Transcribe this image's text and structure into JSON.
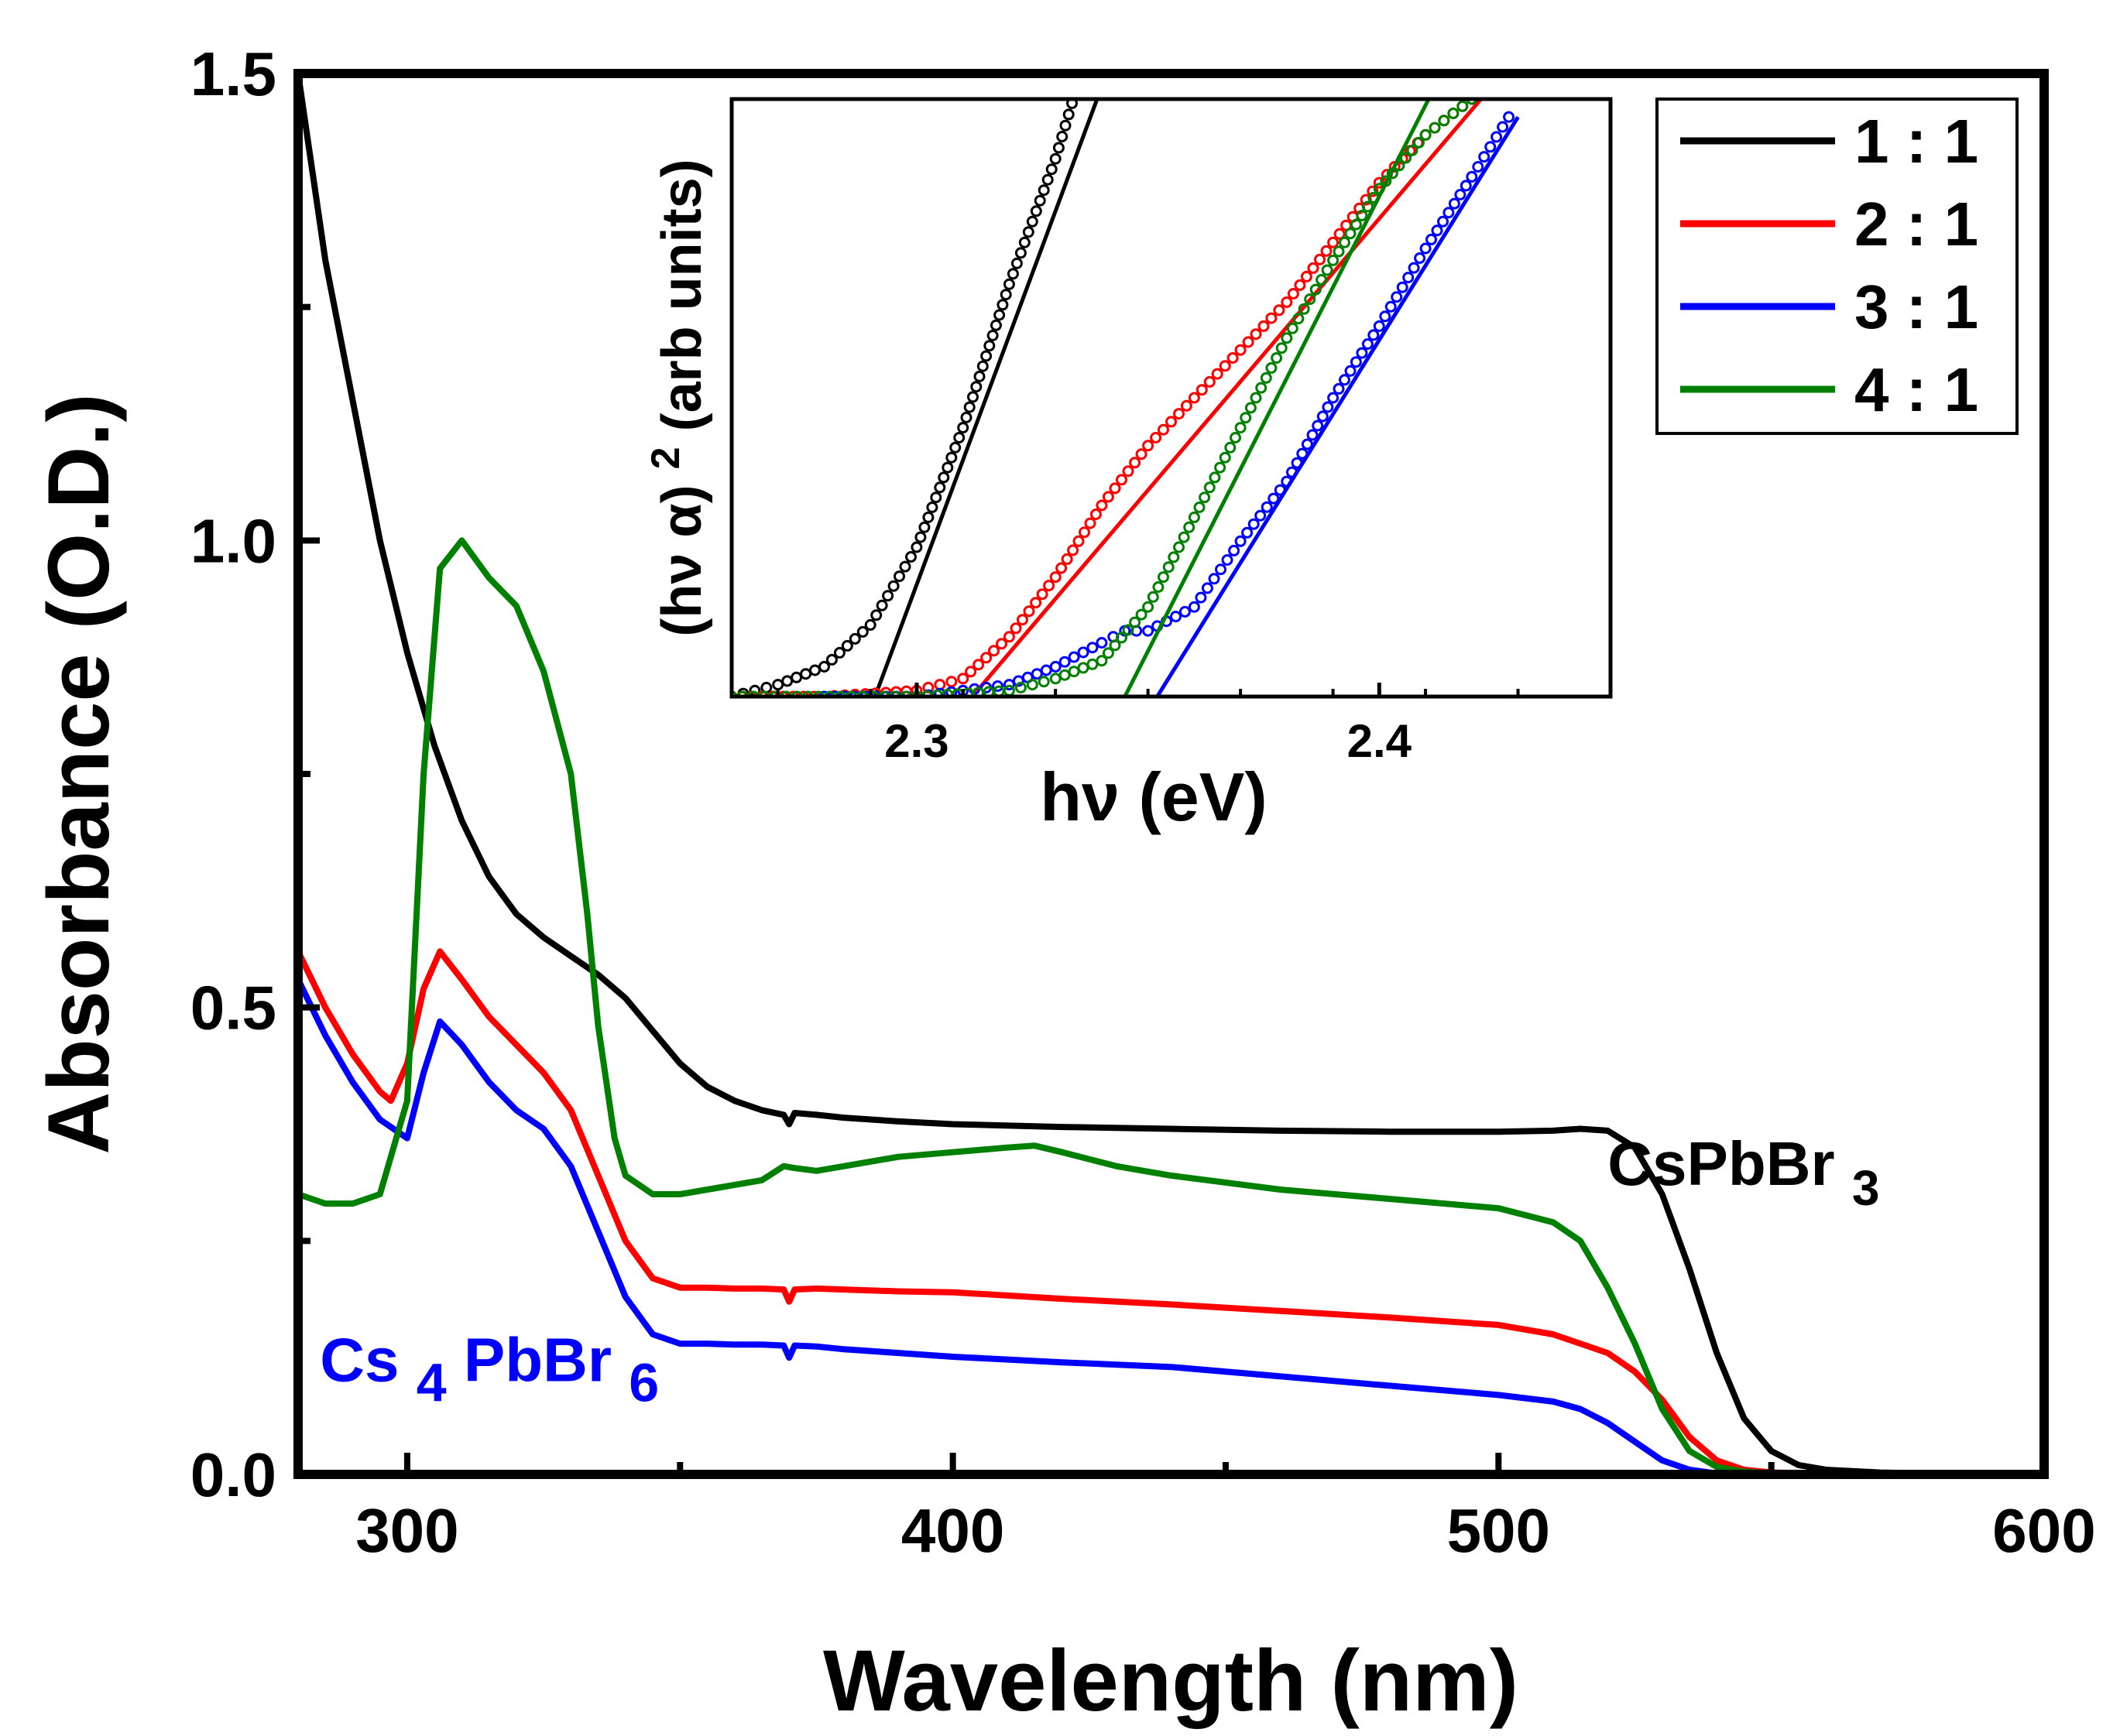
{
  "chart_data": [
    {
      "type": "line",
      "title": "",
      "xlabel": "Wavelength (nm)",
      "ylabel": "Absorbance (O.D.)",
      "xlim": [
        280,
        600
      ],
      "ylim": [
        0,
        1.5
      ],
      "x_ticks": [
        300,
        400,
        500,
        600
      ],
      "x_tick_labels": [
        "300",
        "400",
        "500",
        "600"
      ],
      "y_ticks": [
        0,
        0.5,
        1.0,
        1.5
      ],
      "y_tick_labels": [
        "0.0",
        "0.5",
        "1.0",
        "1.5"
      ],
      "legend_position": "top-right",
      "annotations": [
        {
          "name": "cspbbr3",
          "main": "CsPbBr",
          "sub": "3",
          "color": "#000000",
          "x": 520,
          "y": 0.31
        },
        {
          "name": "cs4pbbr6",
          "parts": [
            {
              "text": "Cs",
              "sub": false
            },
            {
              "text": "4",
              "sub": true
            },
            {
              "text": "PbBr",
              "sub": false
            },
            {
              "text": "6",
              "sub": true
            }
          ],
          "color": "#0000ff",
          "x": 284,
          "y": 0.1
        }
      ],
      "series": [
        {
          "name": "1 : 1",
          "color": "#000000",
          "x": [
            280,
            285,
            290,
            295,
            300,
            305,
            310,
            315,
            320,
            325,
            330,
            335,
            340,
            345,
            350,
            355,
            360,
            365,
            369,
            370,
            371,
            375,
            380,
            390,
            400,
            420,
            440,
            460,
            480,
            500,
            510,
            515,
            520,
            525,
            530,
            535,
            540,
            545,
            550,
            555,
            560,
            570,
            580,
            600
          ],
          "y": [
            1.5,
            1.3,
            1.15,
            1.0,
            0.88,
            0.78,
            0.7,
            0.64,
            0.6,
            0.575,
            0.555,
            0.535,
            0.51,
            0.475,
            0.44,
            0.415,
            0.4,
            0.39,
            0.385,
            0.375,
            0.387,
            0.385,
            0.382,
            0.378,
            0.375,
            0.372,
            0.37,
            0.368,
            0.367,
            0.367,
            0.368,
            0.37,
            0.368,
            0.35,
            0.3,
            0.22,
            0.13,
            0.06,
            0.025,
            0.01,
            0.005,
            0.002,
            0.001,
            0.0
          ]
        },
        {
          "name": "2 : 1",
          "color": "#ff0000",
          "x": [
            280,
            285,
            290,
            295,
            297,
            300,
            303,
            306,
            310,
            315,
            320,
            325,
            330,
            335,
            340,
            345,
            350,
            355,
            360,
            365,
            369,
            370,
            371,
            375,
            380,
            390,
            400,
            420,
            440,
            460,
            480,
            500,
            510,
            520,
            525,
            530,
            535,
            540,
            545,
            550,
            560,
            580,
            600
          ],
          "y": [
            0.56,
            0.5,
            0.45,
            0.41,
            0.4,
            0.44,
            0.52,
            0.56,
            0.53,
            0.49,
            0.46,
            0.43,
            0.39,
            0.32,
            0.25,
            0.21,
            0.2,
            0.2,
            0.199,
            0.199,
            0.198,
            0.185,
            0.198,
            0.199,
            0.198,
            0.196,
            0.195,
            0.188,
            0.182,
            0.175,
            0.168,
            0.16,
            0.15,
            0.13,
            0.11,
            0.08,
            0.04,
            0.015,
            0.005,
            0.002,
            0.001,
            0.0,
            0.0
          ]
        },
        {
          "name": "3 : 1",
          "color": "#0000ff",
          "x": [
            280,
            285,
            290,
            295,
            300,
            303,
            306,
            310,
            315,
            320,
            325,
            330,
            335,
            340,
            345,
            350,
            355,
            360,
            365,
            369,
            370,
            371,
            375,
            380,
            390,
            400,
            420,
            440,
            460,
            480,
            500,
            510,
            515,
            520,
            525,
            530,
            535,
            540,
            550,
            600
          ],
          "y": [
            0.53,
            0.47,
            0.42,
            0.38,
            0.36,
            0.43,
            0.485,
            0.46,
            0.42,
            0.39,
            0.37,
            0.33,
            0.26,
            0.19,
            0.15,
            0.14,
            0.14,
            0.139,
            0.139,
            0.138,
            0.125,
            0.138,
            0.137,
            0.134,
            0.13,
            0.126,
            0.12,
            0.115,
            0.105,
            0.095,
            0.085,
            0.078,
            0.07,
            0.055,
            0.035,
            0.015,
            0.005,
            0.001,
            0.0,
            0.0
          ]
        },
        {
          "name": "4 : 1",
          "color": "#008000",
          "x": [
            280,
            285,
            290,
            295,
            300,
            303,
            306,
            310,
            315,
            320,
            325,
            330,
            333,
            335,
            338,
            340,
            345,
            350,
            355,
            360,
            365,
            369,
            371,
            375,
            380,
            390,
            400,
            410,
            415,
            420,
            430,
            440,
            460,
            480,
            500,
            510,
            515,
            520,
            525,
            530,
            535,
            540,
            545,
            550,
            560,
            600
          ],
          "y": [
            0.3,
            0.29,
            0.29,
            0.3,
            0.4,
            0.75,
            0.97,
            1.0,
            0.96,
            0.93,
            0.86,
            0.75,
            0.6,
            0.48,
            0.36,
            0.32,
            0.3,
            0.3,
            0.305,
            0.31,
            0.315,
            0.33,
            0.328,
            0.325,
            0.33,
            0.34,
            0.345,
            0.35,
            0.352,
            0.345,
            0.33,
            0.32,
            0.305,
            0.295,
            0.285,
            0.27,
            0.25,
            0.2,
            0.14,
            0.07,
            0.025,
            0.008,
            0.003,
            0.001,
            0.0,
            0.0
          ]
        }
      ]
    },
    {
      "type": "scatter",
      "title": "",
      "xlabel": "hν (eV)",
      "ylabel_parts": {
        "main": "(hν α)",
        "sup": "2",
        "rest": " (arb units)"
      },
      "xlim": [
        2.26,
        2.45
      ],
      "ylim": [
        0,
        1
      ],
      "x_ticks": [
        2.3,
        2.4
      ],
      "x_tick_labels": [
        "2.3",
        "2.4"
      ],
      "y_ticks": [],
      "series": [
        {
          "name": "1 : 1",
          "color": "#000000",
          "x": [
            2.26,
            2.27,
            2.28,
            2.29,
            2.3,
            2.31,
            2.32,
            2.33,
            2.335
          ],
          "y": [
            0.0,
            0.02,
            0.05,
            0.12,
            0.25,
            0.45,
            0.69,
            0.9,
            1.03
          ],
          "fit_x": [
            2.291,
            2.339
          ],
          "fit_y": [
            0.0,
            1.0
          ]
        },
        {
          "name": "2 : 1",
          "color": "#ff0000",
          "x": [
            2.26,
            2.28,
            2.3,
            2.31,
            2.32,
            2.33,
            2.34,
            2.35,
            2.36,
            2.37,
            2.38,
            2.39,
            2.4,
            2.41,
            2.42
          ],
          "y": [
            0.0,
            0.0,
            0.01,
            0.03,
            0.1,
            0.2,
            0.32,
            0.42,
            0.5,
            0.58,
            0.66,
            0.76,
            0.86,
            0.94,
            1.0
          ],
          "fit_x": [
            2.312,
            2.422
          ],
          "fit_y": [
            0.0,
            1.0
          ]
        },
        {
          "name": "3 : 1",
          "color": "#0000ff",
          "x": [
            2.28,
            2.3,
            2.31,
            2.32,
            2.33,
            2.34,
            2.345,
            2.35,
            2.36,
            2.37,
            2.38,
            2.39,
            2.4,
            2.41,
            2.42,
            2.428
          ],
          "y": [
            0.0,
            0.0,
            0.01,
            0.02,
            0.05,
            0.09,
            0.11,
            0.11,
            0.15,
            0.26,
            0.36,
            0.5,
            0.62,
            0.75,
            0.87,
            0.97
          ],
          "fit_x": [
            2.352,
            2.43
          ],
          "fit_y": [
            0.0,
            0.97
          ]
        },
        {
          "name": "4 : 1",
          "color": "#008000",
          "x": [
            2.26,
            2.3,
            2.32,
            2.33,
            2.34,
            2.35,
            2.36,
            2.37,
            2.38,
            2.39,
            2.4,
            2.41,
            2.42
          ],
          "y": [
            0.0,
            0.0,
            0.01,
            0.03,
            0.06,
            0.15,
            0.3,
            0.45,
            0.6,
            0.73,
            0.85,
            0.94,
            1.0
          ],
          "fit_x": [
            2.345,
            2.412
          ],
          "fit_y": [
            0.0,
            1.02
          ]
        }
      ]
    }
  ]
}
